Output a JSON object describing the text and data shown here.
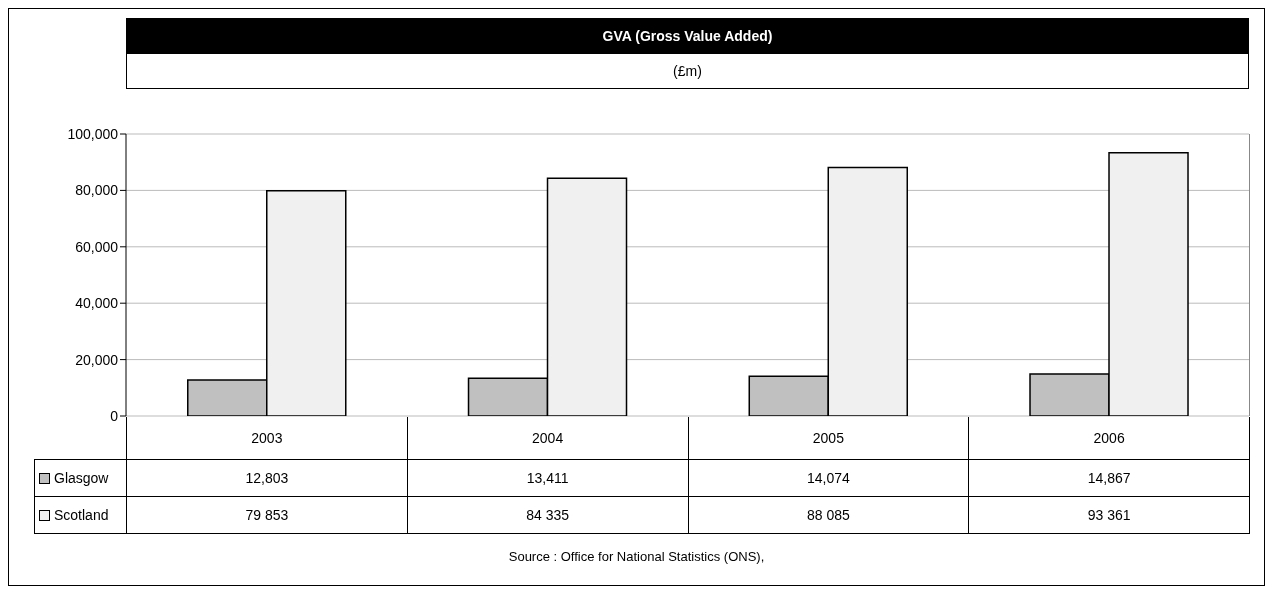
{
  "chart_data": {
    "type": "bar",
    "title": "GVA (Gross Value Added)",
    "subtitle": "(£m)",
    "categories": [
      "2003",
      "2004",
      "2005",
      "2006"
    ],
    "series": [
      {
        "name": "Glasgow",
        "color": "#c0c0c0",
        "values": [
          12803,
          13411,
          14074,
          14867
        ],
        "value_labels": [
          "12,803",
          "13,411",
          "14,074",
          "14,867"
        ]
      },
      {
        "name": "Scotland",
        "color": "#f0f0f0",
        "values": [
          79853,
          84335,
          88085,
          93361
        ],
        "value_labels": [
          "79 853",
          "84 335",
          "88 085",
          "93 361"
        ]
      }
    ],
    "ylim": [
      0,
      100000
    ],
    "yticks": [
      0,
      {
        "value": 20000,
        "label": "20,000"
      },
      {
        "value": 40000,
        "label": "40,000"
      },
      {
        "value": 60000,
        "label": "60,000"
      },
      {
        "value": 80000,
        "label": "80,000"
      },
      {
        "value": 100000,
        "label": "100,000"
      }
    ],
    "grid": "y",
    "legend": "bottom left",
    "annotations": [
      "Source : Office for National Statistics (ONS),"
    ]
  }
}
